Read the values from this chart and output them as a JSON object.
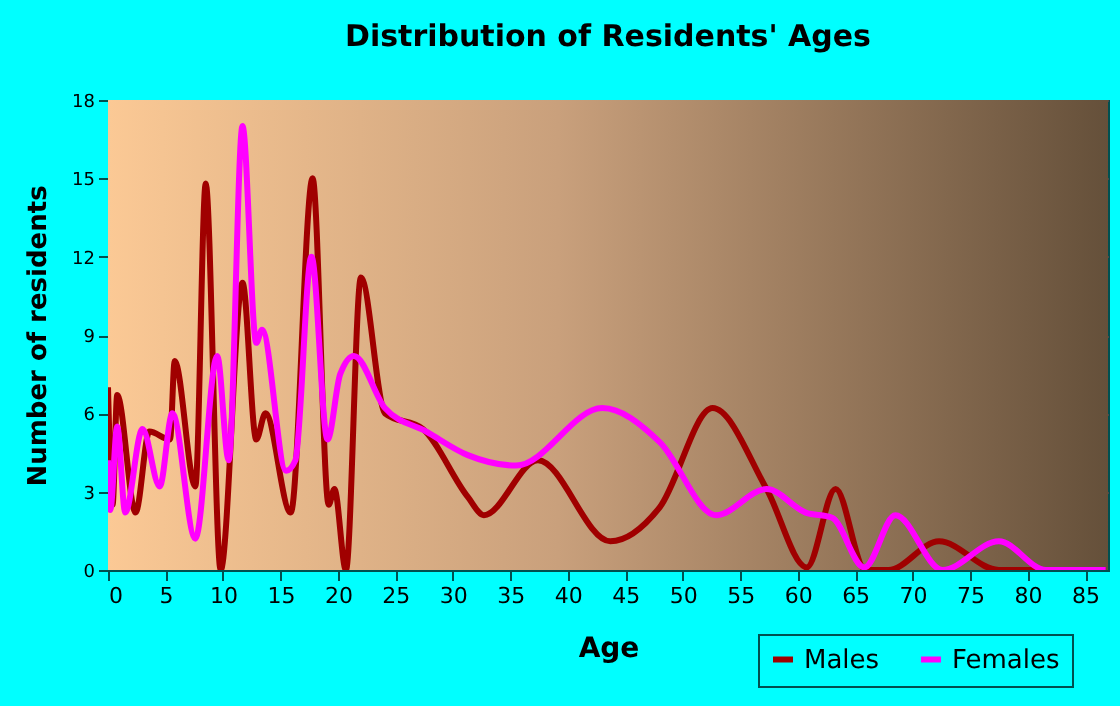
{
  "chart_data": {
    "type": "line",
    "title": "Distribution of Residents' Ages",
    "xlabel": "Age",
    "ylabel": "Number of residents",
    "xlim": [
      0,
      87
    ],
    "xticks": [
      0,
      5,
      10,
      15,
      20,
      25,
      30,
      35,
      40,
      45,
      50,
      55,
      60,
      65,
      70,
      75,
      80,
      85
    ],
    "ylim": [
      0,
      18
    ],
    "yticks": [
      0,
      3,
      6,
      9,
      12,
      15,
      18
    ],
    "grid": true,
    "legend": "bottom right",
    "marker": "none",
    "line_style": "solid",
    "series": [
      {
        "name": "Males",
        "color": "#a00000",
        "x": [
          0,
          0.4,
          0.8,
          2.4,
          3.6,
          5.4,
          5.8,
          7.6,
          8.5,
          9.8,
          11.7,
          12.9,
          13.7,
          15.9,
          17.8,
          19.2,
          19.7,
          20.7,
          22,
          24.1,
          27.4,
          31.3,
          32.7,
          37.4,
          43.7,
          48,
          52.6,
          57.3,
          60.8,
          63.3,
          65.9,
          67.9,
          72.3,
          77.5,
          86.8
        ],
        "values": [
          7,
          2.5,
          6.7,
          2.2,
          5.3,
          5,
          8,
          3.2,
          14.8,
          0,
          11,
          5,
          6,
          2.2,
          15,
          2.5,
          3.1,
          0,
          11.2,
          6,
          5.4,
          2.8,
          2.1,
          4.2,
          1.1,
          2.4,
          6.2,
          3.1,
          0.1,
          3.1,
          0,
          0,
          1.1,
          0,
          0
        ]
      },
      {
        "name": "Females",
        "color": "#ff00ff",
        "x": [
          0,
          0.2,
          0.8,
          1.5,
          3,
          4.5,
          5.6,
          7.6,
          9.5,
          10.5,
          11.7,
          12.9,
          13.4,
          15.5,
          16.3,
          17.7,
          19.1,
          20.2,
          21.4,
          24.1,
          27.7,
          31.3,
          35.5,
          43,
          48,
          52.9,
          57.3,
          60.7,
          63,
          65.8,
          68.5,
          72.6,
          77.5,
          81.6,
          86.8
        ],
        "values": [
          4.2,
          2.3,
          5.5,
          2.2,
          5.4,
          3.2,
          6,
          1.2,
          8.2,
          4.2,
          17,
          8.7,
          9.2,
          3.8,
          4.2,
          12,
          5,
          7.5,
          8.2,
          6.2,
          5.3,
          4.4,
          4,
          6.2,
          4.9,
          2.1,
          3.1,
          2.2,
          2,
          0.1,
          2.1,
          0,
          1.1,
          0,
          0
        ]
      }
    ]
  }
}
